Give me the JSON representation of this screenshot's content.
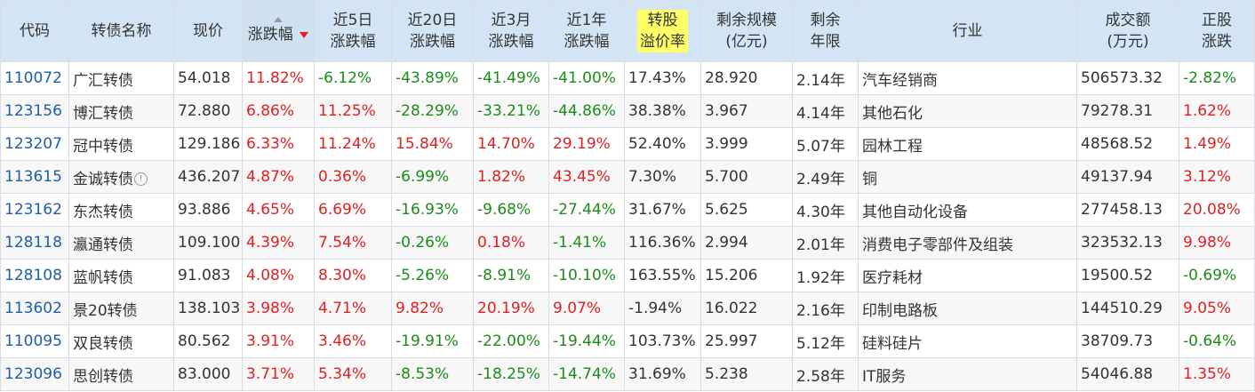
{
  "headers": {
    "code": "代码",
    "name": "转债名称",
    "price": "现价",
    "change": "涨跌幅",
    "d5_l1": "近5日",
    "d5_l2": "涨跌幅",
    "d20_l1": "近20日",
    "d20_l2": "涨跌幅",
    "m3_l1": "近3月",
    "m3_l2": "涨跌幅",
    "y1_l1": "近1年",
    "y1_l2": "涨跌幅",
    "prem_l1": "转股",
    "prem_l2": "溢价率",
    "scale_l1": "剩余规模",
    "scale_l2": "(亿元)",
    "years_l1": "剩余",
    "years_l2": "年限",
    "industry": "行业",
    "volume_l1": "成交额",
    "volume_l2": "(万元)",
    "stock_l1": "正股",
    "stock_l2": "涨跌"
  },
  "rows": [
    {
      "code": "110072",
      "name": "广汇转债",
      "price": "54.018",
      "change": "11.82%",
      "d5": "-6.12%",
      "d20": "-43.89%",
      "m3": "-41.49%",
      "y1": "-41.00%",
      "prem": "17.43%",
      "scale": "28.920",
      "years": "2.14年",
      "industry": "汽车经销商",
      "volume": "506573.32",
      "stock": "-2.82%"
    },
    {
      "code": "123156",
      "name": "博汇转债",
      "price": "72.880",
      "change": "6.86%",
      "d5": "11.25%",
      "d20": "-28.29%",
      "m3": "-33.21%",
      "y1": "-44.86%",
      "prem": "38.38%",
      "scale": "3.967",
      "years": "4.14年",
      "industry": "其他石化",
      "volume": "79278.31",
      "stock": "1.62%"
    },
    {
      "code": "123207",
      "name": "冠中转债",
      "price": "129.186",
      "change": "6.33%",
      "d5": "11.24%",
      "d20": "15.84%",
      "m3": "14.70%",
      "y1": "29.19%",
      "prem": "52.40%",
      "scale": "3.999",
      "years": "5.07年",
      "industry": "园林工程",
      "volume": "48568.52",
      "stock": "1.49%"
    },
    {
      "code": "113615",
      "name": "金诚转债",
      "price": "436.207",
      "change": "4.87%",
      "d5": "0.36%",
      "d20": "-6.99%",
      "m3": "1.82%",
      "y1": "43.45%",
      "prem": "7.30%",
      "scale": "5.700",
      "years": "2.49年",
      "industry": "铜",
      "volume": "49137.94",
      "stock": "3.12%",
      "info": "!"
    },
    {
      "code": "123162",
      "name": "东杰转债",
      "price": "93.886",
      "change": "4.65%",
      "d5": "6.69%",
      "d20": "-16.93%",
      "m3": "-9.68%",
      "y1": "-27.44%",
      "prem": "31.67%",
      "scale": "5.625",
      "years": "4.30年",
      "industry": "其他自动化设备",
      "volume": "277458.13",
      "stock": "20.08%"
    },
    {
      "code": "128118",
      "name": "瀛通转债",
      "price": "109.100",
      "change": "4.39%",
      "d5": "7.54%",
      "d20": "-0.26%",
      "m3": "0.18%",
      "y1": "-1.41%",
      "prem": "116.36%",
      "scale": "2.994",
      "years": "2.01年",
      "industry": "消费电子零部件及组装",
      "volume": "323532.13",
      "stock": "9.98%"
    },
    {
      "code": "128108",
      "name": "蓝帆转债",
      "price": "91.083",
      "change": "4.08%",
      "d5": "8.30%",
      "d20": "-5.26%",
      "m3": "-8.91%",
      "y1": "-10.10%",
      "prem": "163.55%",
      "scale": "15.206",
      "years": "1.92年",
      "industry": "医疗耗材",
      "volume": "19500.52",
      "stock": "-0.69%"
    },
    {
      "code": "113602",
      "name": "景20转债",
      "price": "138.103",
      "change": "3.98%",
      "d5": "4.71%",
      "d20": "9.82%",
      "m3": "20.19%",
      "y1": "9.07%",
      "prem": "-1.94%",
      "scale": "16.022",
      "years": "2.16年",
      "industry": "印制电路板",
      "volume": "144510.29",
      "stock": "9.05%"
    },
    {
      "code": "110095",
      "name": "双良转债",
      "price": "80.562",
      "change": "3.91%",
      "d5": "3.46%",
      "d20": "-19.91%",
      "m3": "-22.00%",
      "y1": "-19.44%",
      "prem": "103.73%",
      "scale": "25.997",
      "years": "5.12年",
      "industry": "硅料硅片",
      "volume": "38709.73",
      "stock": "-0.64%"
    },
    {
      "code": "123096",
      "name": "思创转债",
      "price": "83.000",
      "change": "3.71%",
      "d5": "5.34%",
      "d20": "-8.53%",
      "m3": "-18.25%",
      "y1": "-14.74%",
      "prem": "31.69%",
      "scale": "5.238",
      "years": "2.58年",
      "industry": "IT服务",
      "volume": "54046.88",
      "stock": "1.35%"
    }
  ],
  "colors": {
    "positive": "#e02020",
    "negative": "#1a8c1a",
    "code_link": "#1f5da8",
    "header_bg": "#d3e5f5",
    "highlight": "#ffff66"
  }
}
